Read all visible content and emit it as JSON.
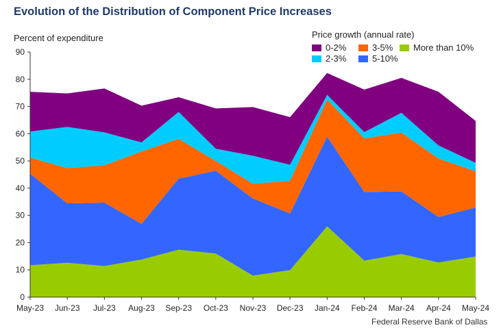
{
  "chart_data": {
    "type": "area",
    "title": "Evolution of the Distribution of Component Price Increases",
    "ylabel": "Percent of expenditure",
    "xlabel": "",
    "ylim": [
      0,
      90
    ],
    "yticks": [
      0,
      10,
      20,
      30,
      40,
      50,
      60,
      70,
      80,
      90
    ],
    "categories": [
      "May-23",
      "Jun-23",
      "Jul-23",
      "Aug-23",
      "Sep-23",
      "Oct-23",
      "Nov-23",
      "Dec-23",
      "Jan-24",
      "Feb-24",
      "Mar-24",
      "Apr-24",
      "May-24"
    ],
    "legend_title": "Price growth (annual rate)",
    "stack_order": [
      "More than 10%",
      "5-10%",
      "3-5%",
      "2-3%",
      "0-2%"
    ],
    "series": [
      {
        "name": "More than 10%",
        "color": "#99cc00",
        "values": [
          11.7,
          12.6,
          11.4,
          13.8,
          17.4,
          16.0,
          7.9,
          9.9,
          26.0,
          13.4,
          15.8,
          12.7,
          14.9
        ]
      },
      {
        "name": "5-10%",
        "color": "#3366ff",
        "values": [
          33.6,
          21.8,
          23.3,
          13.1,
          26.1,
          30.4,
          28.3,
          20.8,
          32.9,
          25.2,
          23.0,
          16.7,
          18.0
        ]
      },
      {
        "name": "3-5%",
        "color": "#ff6600",
        "values": [
          5.9,
          13.0,
          13.7,
          26.6,
          14.6,
          3.6,
          5.4,
          12.0,
          13.6,
          19.7,
          21.6,
          21.5,
          13.3
        ]
      },
      {
        "name": "2-3%",
        "color": "#00ccff",
        "values": [
          9.6,
          15.1,
          12.1,
          3.3,
          9.9,
          4.5,
          10.3,
          5.9,
          1.8,
          2.3,
          7.3,
          4.8,
          3.1
        ]
      },
      {
        "name": "0-2%",
        "color": "#800080",
        "values": [
          14.6,
          12.3,
          16.1,
          13.5,
          5.4,
          14.8,
          17.9,
          17.5,
          8.0,
          15.6,
          12.8,
          19.7,
          15.4
        ]
      }
    ],
    "legend": [
      {
        "label": "0-2%",
        "color": "#800080"
      },
      {
        "label": "3-5%",
        "color": "#ff6600"
      },
      {
        "label": "More than 10%",
        "color": "#99cc00"
      },
      {
        "label": "2-3%",
        "color": "#00ccff"
      },
      {
        "label": "5-10%",
        "color": "#3366ff"
      }
    ],
    "source": "Federal Reserve Bank of Dallas"
  }
}
